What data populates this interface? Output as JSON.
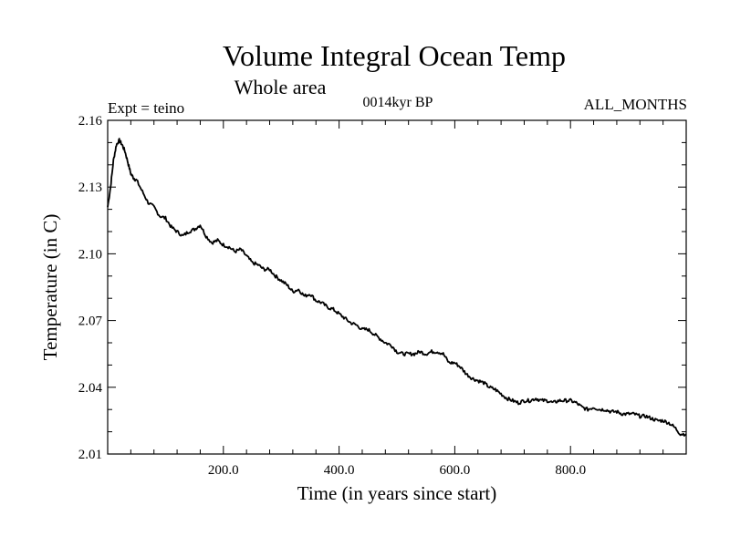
{
  "chart_data": {
    "type": "line",
    "title": "Volume Integral Ocean Temp",
    "subtitle": "Whole area",
    "annotations": {
      "experiment": "Expt = teino",
      "period": "0014kyr BP",
      "months": "ALL_MONTHS"
    },
    "xlabel": "Time (in years since start)",
    "ylabel": "Temperature (in C)",
    "xlim": [
      0,
      1000
    ],
    "ylim": [
      2.01,
      2.16
    ],
    "x_ticks": [
      200,
      400,
      600,
      800
    ],
    "x_tick_labels": [
      "200.0",
      "400.0",
      "600.0",
      "800.0"
    ],
    "y_ticks": [
      2.01,
      2.04,
      2.07,
      2.1,
      2.13,
      2.16
    ],
    "y_tick_labels": [
      "2.01",
      "2.04",
      "2.07",
      "2.10",
      "2.13",
      "2.16"
    ],
    "grid": false,
    "series": [
      {
        "name": "Volume Integral Ocean Temp",
        "color": "#000000",
        "x": [
          0,
          5,
          10,
          15,
          20,
          25,
          30,
          35,
          40,
          45,
          50,
          60,
          70,
          80,
          90,
          100,
          110,
          120,
          130,
          140,
          150,
          160,
          170,
          180,
          190,
          200,
          210,
          220,
          230,
          240,
          250,
          260,
          270,
          280,
          290,
          300,
          310,
          320,
          330,
          340,
          350,
          360,
          370,
          380,
          390,
          400,
          410,
          420,
          430,
          440,
          450,
          460,
          470,
          480,
          490,
          500,
          510,
          520,
          530,
          540,
          550,
          560,
          570,
          580,
          590,
          600,
          610,
          620,
          630,
          640,
          650,
          660,
          670,
          680,
          690,
          700,
          710,
          720,
          730,
          740,
          750,
          760,
          770,
          780,
          790,
          800,
          810,
          820,
          830,
          840,
          850,
          860,
          870,
          880,
          890,
          900,
          910,
          920,
          930,
          940,
          950,
          960,
          970,
          980,
          990,
          1000
        ],
        "y": [
          2.121,
          2.13,
          2.142,
          2.149,
          2.151,
          2.149,
          2.146,
          2.141,
          2.136,
          2.134,
          2.133,
          2.128,
          2.123,
          2.121,
          2.117,
          2.116,
          2.112,
          2.11,
          2.108,
          2.11,
          2.111,
          2.113,
          2.108,
          2.105,
          2.106,
          2.104,
          2.103,
          2.101,
          2.102,
          2.099,
          2.096,
          2.095,
          2.093,
          2.093,
          2.09,
          2.088,
          2.086,
          2.083,
          2.084,
          2.081,
          2.082,
          2.079,
          2.078,
          2.076,
          2.075,
          2.073,
          2.071,
          2.069,
          2.068,
          2.066,
          2.066,
          2.064,
          2.062,
          2.06,
          2.059,
          2.056,
          2.055,
          2.055,
          2.055,
          2.056,
          2.055,
          2.056,
          2.056,
          2.055,
          2.051,
          2.051,
          2.049,
          2.046,
          2.044,
          2.043,
          2.042,
          2.04,
          2.039,
          2.037,
          2.035,
          2.034,
          2.033,
          2.034,
          2.034,
          2.035,
          2.034,
          2.034,
          2.033,
          2.034,
          2.034,
          2.034,
          2.033,
          2.031,
          2.03,
          2.031,
          2.03,
          2.03,
          2.029,
          2.029,
          2.028,
          2.028,
          2.028,
          2.027,
          2.027,
          2.026,
          2.025,
          2.025,
          2.024,
          2.022,
          2.019,
          2.019
        ]
      }
    ]
  }
}
